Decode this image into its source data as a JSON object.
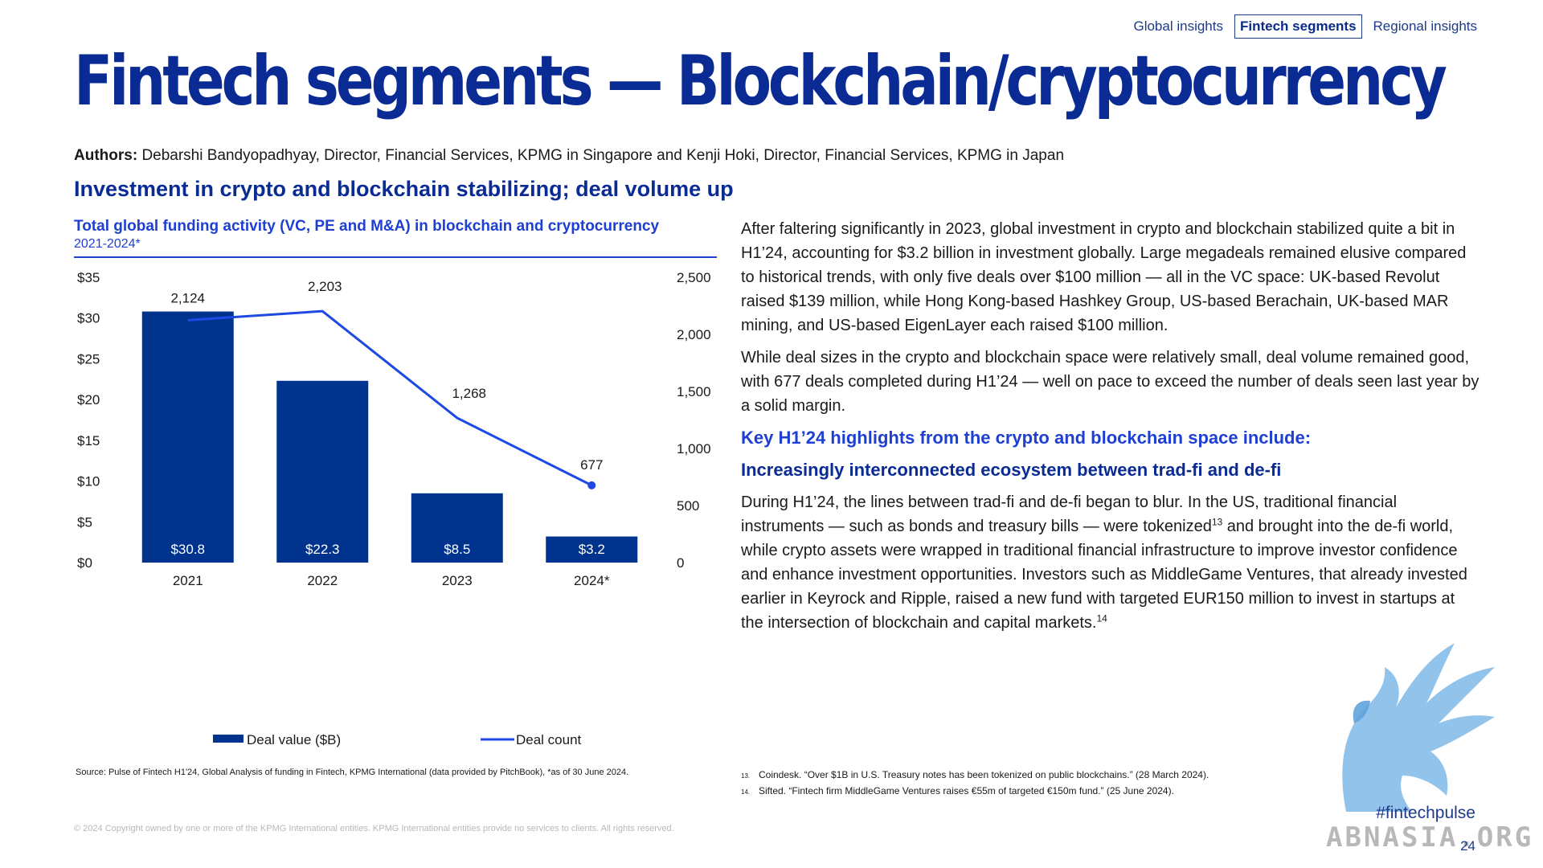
{
  "nav": {
    "items": [
      {
        "label": "Global insights",
        "active": false
      },
      {
        "label": "Fintech segments",
        "active": true
      },
      {
        "label": "Regional insights",
        "active": false
      }
    ]
  },
  "title": "Fintech segments — Blockchain/cryptocurrency",
  "authors": {
    "label": "Authors:",
    "text": "Debarshi Bandyopadhyay, Director, Financial Services, KPMG in Singapore and Kenji Hoki, Director, Financial Services, KPMG in Japan"
  },
  "subheading": "Investment in crypto and blockchain stabilizing; deal volume up",
  "chart_data": {
    "type": "bar",
    "title": "Total global funding activity (VC, PE and M&A) in blockchain and cryptocurrency",
    "subtitle": "2021-2024*",
    "categories": [
      "2021",
      "2022",
      "2023",
      "2024*"
    ],
    "y_left": {
      "ticks": [
        "$0",
        "$5",
        "$10",
        "$15",
        "$20",
        "$25",
        "$30",
        "$35"
      ],
      "min": 0,
      "max": 35
    },
    "y_right": {
      "ticks": [
        "0",
        "500",
        "1,000",
        "1,500",
        "2,000",
        "2,500"
      ],
      "min": 0,
      "max": 2500
    },
    "series": [
      {
        "name": "Deal value ($B)",
        "type": "bar",
        "axis": "left",
        "color": "#00338d",
        "values": [
          30.8,
          22.3,
          8.5,
          3.2
        ],
        "labels": [
          "$30.8",
          "$22.3",
          "$8.5",
          "$3.2"
        ]
      },
      {
        "name": "Deal count",
        "type": "line",
        "axis": "right",
        "color": "#1e49e2",
        "values": [
          2124,
          2203,
          1268,
          677
        ],
        "labels": [
          "2,124",
          "2,203",
          "1,268",
          "677"
        ]
      }
    ],
    "grid": false,
    "legend": "bottom"
  },
  "source": "Source: Pulse of Fintech H1'24, Global Analysis of funding in Fintech, KPMG International (data provided by PitchBook), *as of 30 June 2024.",
  "copyright": "© 2024 Copyright owned by one or more of the KPMG International entities. KPMG International entities provide no services to clients. All rights reserved.",
  "body": {
    "p1": "After faltering significantly in 2023, global investment in crypto and blockchain stabilized quite a bit in H1’24, accounting for $3.2 billion in investment globally. Large megadeals remained elusive compared to historical trends, with only five deals over $100 million — all in the VC space: UK-based Revolut raised $139 million, while Hong Kong-based Hashkey Group, US-based Berachain, UK-based MAR mining, and US-based EigenLayer each raised $100 million.",
    "p2": "While deal sizes in the crypto and blockchain space were relatively small, deal volume remained good, with 677 deals completed during H1’24 — well on pace to exceed the number of deals seen last year by a solid margin.",
    "h1": "Key H1’24 highlights from the crypto and blockchain space include:",
    "h2": "Increasingly interconnected ecosystem between trad-fi and de-fi",
    "p3a": "During H1’24, the lines between trad-fi and de-fi began to blur. In the US, traditional financial instruments — such as bonds and treasury bills — were tokenized",
    "p3sup1": "13",
    "p3b": " and brought into the de-fi world, while crypto assets were wrapped in traditional financial infrastructure to improve investor confidence and enhance investment opportunities. Investors such as MiddleGame Ventures, that already invested earlier in Keyrock and Ripple, raised a new fund with targeted EUR150 million to invest in startups at the intersection of blockchain and capital markets.",
    "p3sup2": "14"
  },
  "footnotes": [
    {
      "num": "13.",
      "text": "Coindesk. “Over $1B in U.S. Treasury notes has been tokenized on public blockchains.” (28 March 2024)."
    },
    {
      "num": "14.",
      "text": "Sifted. “Fintech firm MiddleGame Ventures raises €55m of targeted €150m fund.” (25 June 2024)."
    }
  ],
  "hashtag": "#fintechpulse",
  "page_number": "24",
  "watermark": "ABNASIA.ORG",
  "colors": {
    "brand": "#0a2b94",
    "accent": "#1e3fd1",
    "bar": "#00338d",
    "line": "#1e49e2"
  }
}
